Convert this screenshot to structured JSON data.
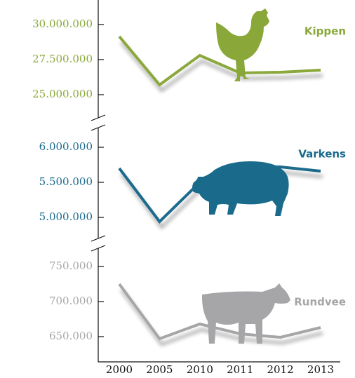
{
  "chart_data": {
    "type": "line",
    "categories": [
      "2000",
      "2005",
      "2010",
      "2011",
      "2012",
      "2013"
    ],
    "series": [
      {
        "name": "Kippen",
        "color": "#8aa83a",
        "values": [
          29150000,
          25700000,
          27800000,
          26550000,
          26600000,
          26750000
        ],
        "ylim": [
          24250000,
          30750000
        ],
        "yticks": [
          {
            "value": 25000000,
            "label": "25.000.000"
          },
          {
            "value": 27500000,
            "label": "27.500.000"
          },
          {
            "value": 30000000,
            "label": "30.000.000"
          }
        ]
      },
      {
        "name": "Varkens",
        "color": "#1a6a8c",
        "values": [
          5700000,
          4940000,
          5500000,
          5730000,
          5720000,
          5660000
        ],
        "ylim": [
          4800000,
          6200000
        ],
        "yticks": [
          {
            "value": 5000000,
            "label": "5.000.000"
          },
          {
            "value": 5500000,
            "label": "5.500.000"
          },
          {
            "value": 6000000,
            "label": "6.000.000"
          }
        ]
      },
      {
        "name": "Rundvee",
        "color": "#a6a6a8",
        "values": [
          725000,
          647000,
          668000,
          654000,
          649000,
          663000
        ],
        "ylim": [
          630000,
          770000
        ],
        "yticks": [
          {
            "value": 650000,
            "label": "650.000"
          },
          {
            "value": 700000,
            "label": "700.000"
          },
          {
            "value": 750000,
            "label": "750.000"
          }
        ]
      }
    ]
  }
}
